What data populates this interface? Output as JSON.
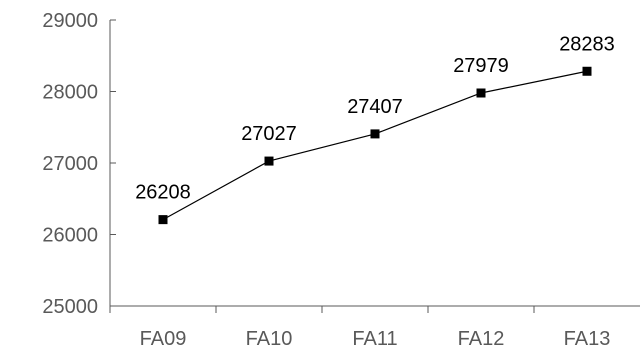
{
  "chart_data": {
    "type": "line",
    "title": "",
    "xlabel": "",
    "ylabel": "",
    "categories": [
      "FA09",
      "FA10",
      "FA11",
      "FA12",
      "FA13"
    ],
    "series": [
      {
        "values": [
          26208,
          27027,
          27407,
          27979,
          28283
        ],
        "color": "#000000",
        "marker": "square"
      }
    ],
    "ylim": [
      25000,
      29000
    ],
    "yticks": [
      25000,
      26000,
      27000,
      28000,
      29000
    ],
    "data_labels": [
      "26208",
      "27027",
      "27407",
      "27979",
      "28283"
    ],
    "grid": false,
    "legend": "none",
    "axis_color": "#595959",
    "tick_label_color": "#595959"
  }
}
